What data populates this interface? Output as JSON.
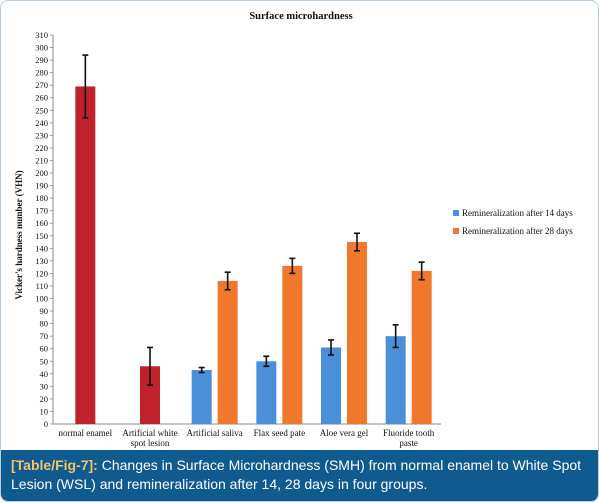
{
  "chart_data": {
    "type": "bar",
    "title": "Surface microhardness",
    "xlabel": "",
    "ylabel": "Vicker's hardness number (VHN)",
    "ylim": [
      0,
      310
    ],
    "ytick_step": 10,
    "grid": false,
    "legend_position": "right",
    "categories": [
      [
        "normal enamel"
      ],
      [
        "Artificial white",
        "spot lesion"
      ],
      [
        "Artificial saliva"
      ],
      [
        "Flax seed pate"
      ],
      [
        "Aloe vera gel"
      ],
      [
        "Fluoride tooth",
        "paste"
      ]
    ],
    "baseline_series": {
      "values": [
        269,
        46,
        null,
        null,
        null,
        null
      ],
      "errors": [
        25,
        15,
        null,
        null,
        null,
        null
      ]
    },
    "series": [
      {
        "name": "Remineralization after 14 days",
        "values": [
          null,
          null,
          43,
          50,
          61,
          70
        ],
        "errors": [
          null,
          null,
          2,
          4,
          6,
          9
        ]
      },
      {
        "name": "Remineralization after 28 days",
        "values": [
          null,
          null,
          114,
          126,
          145,
          122
        ],
        "errors": [
          null,
          null,
          7,
          6,
          7,
          7
        ]
      }
    ],
    "colors": {
      "baseline": "#c0222b",
      "series_14": "#4a90d9",
      "series_28": "#f0782d",
      "axis": "#888888"
    }
  },
  "caption": {
    "label": "[Table/Fig-7]:",
    "text": " Changes in Surface Microhardness (SMH) from normal enamel to White Spot Lesion (WSL) and remineralization after 14, 28 days in four groups."
  }
}
